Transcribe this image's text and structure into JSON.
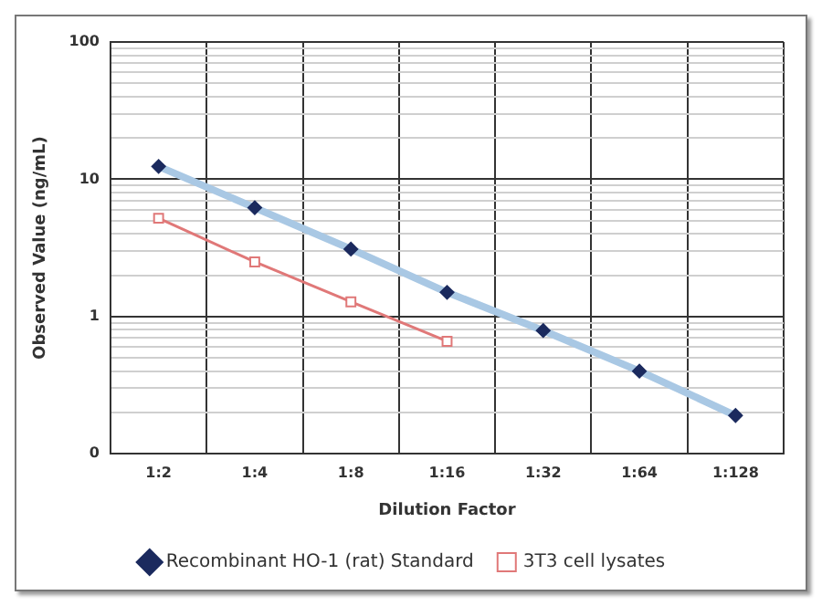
{
  "chart_data": {
    "type": "line",
    "xlabel": "Dilution Factor",
    "ylabel": "Observed Value (ng/mL)",
    "categories": [
      "1:2",
      "1:4",
      "1:8",
      "1:16",
      "1:32",
      "1:64",
      "1:128"
    ],
    "series": [
      {
        "name": "Recombinant HO-1 (rat) Standard",
        "color": "#a9c8e4",
        "marker": "diamond",
        "values": [
          12.4,
          6.2,
          3.1,
          1.5,
          0.79,
          0.4,
          0.19
        ]
      },
      {
        "name": "3T3 cell lysates",
        "color": "#e07878",
        "marker": "square",
        "values": [
          5.2,
          2.5,
          1.28,
          0.66,
          null,
          null,
          null
        ]
      }
    ],
    "log": "y",
    "ylim": [
      0.1,
      100
    ],
    "yticks": [
      {
        "value": 0.1,
        "label": "0"
      },
      {
        "value": 0.2,
        "label": null
      },
      {
        "value": 0.3,
        "label": null
      },
      {
        "value": 0.4,
        "label": null
      },
      {
        "value": 0.5,
        "label": null
      },
      {
        "value": 0.6,
        "label": null
      },
      {
        "value": 0.7,
        "label": null
      },
      {
        "value": 0.8,
        "label": null
      },
      {
        "value": 0.9,
        "label": null
      },
      1,
      {
        "value": 2,
        "label": null
      },
      {
        "value": 3,
        "label": null
      },
      {
        "value": 4,
        "label": null
      },
      {
        "value": 5,
        "label": null
      },
      {
        "value": 6,
        "label": null
      },
      {
        "value": 7,
        "label": null
      },
      {
        "value": 8,
        "label": null
      },
      {
        "value": 9,
        "label": null
      },
      10,
      {
        "value": 20,
        "label": null
      },
      {
        "value": 30,
        "label": null
      },
      {
        "value": 40,
        "label": null
      },
      {
        "value": 50,
        "label": null
      },
      {
        "value": 60,
        "label": null
      },
      {
        "value": 70,
        "label": null
      },
      {
        "value": 80,
        "label": null
      },
      {
        "value": 90,
        "label": null
      },
      100
    ],
    "grid": true,
    "legend": "bottom"
  }
}
